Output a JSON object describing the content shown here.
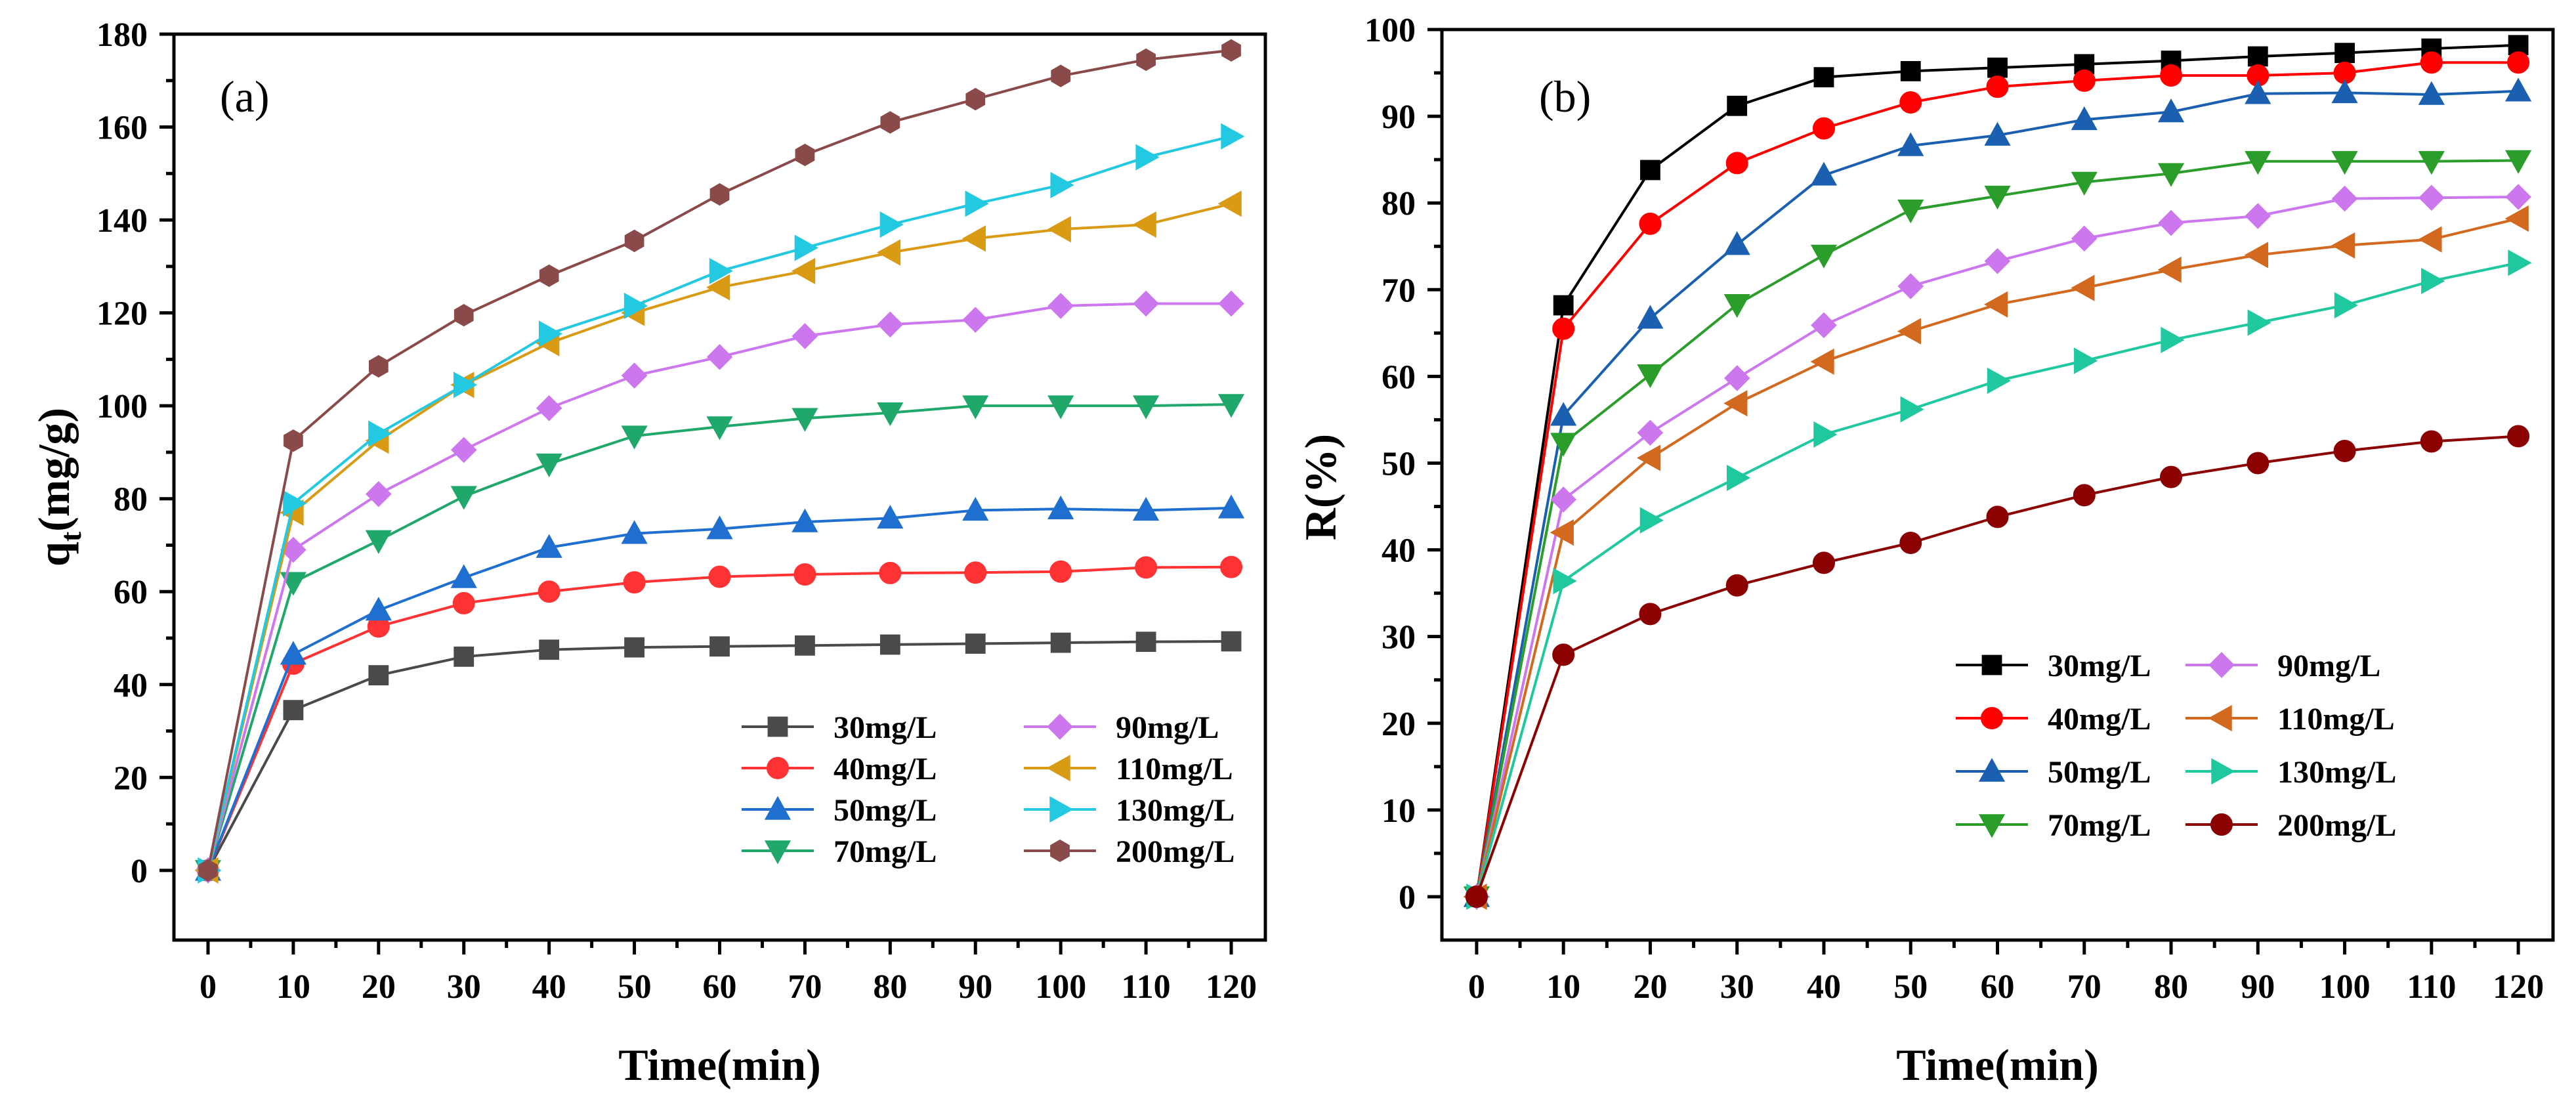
{
  "chart_data": [
    {
      "type": "line",
      "panel_label": "(a)",
      "xlabel": "Time(min)",
      "ylabel_main": "q",
      "ylabel_sub": "t",
      "ylabel_unit": "(mg/g)",
      "xlim": [
        -4,
        124
      ],
      "ylim": [
        -15,
        180
      ],
      "xticks": [
        0,
        10,
        20,
        30,
        40,
        50,
        60,
        70,
        80,
        90,
        100,
        110,
        120
      ],
      "yticks": [
        0,
        20,
        40,
        60,
        80,
        100,
        120,
        140,
        160,
        180
      ],
      "legend_position": "bottom-right",
      "x": [
        0,
        10,
        20,
        30,
        40,
        50,
        60,
        70,
        80,
        90,
        100,
        110,
        120
      ],
      "series": [
        {
          "name": "30mg/L",
          "color": "#4a4a4a",
          "marker": "square",
          "values": [
            0,
            34.5,
            42,
            46,
            47.5,
            48,
            48.2,
            48.4,
            48.6,
            48.8,
            49,
            49.2,
            49.3
          ]
        },
        {
          "name": "40mg/L",
          "color": "#ff3333",
          "marker": "circle",
          "values": [
            0,
            44.5,
            52.5,
            57.5,
            60,
            62,
            63.2,
            63.7,
            64,
            64.1,
            64.3,
            65.2,
            65.3
          ]
        },
        {
          "name": "50mg/L",
          "color": "#1f6fd0",
          "marker": "triangle-up",
          "values": [
            0,
            46.5,
            56,
            63,
            69.5,
            72.5,
            73.5,
            75,
            75.8,
            77.5,
            77.8,
            77.5,
            78
          ]
        },
        {
          "name": "70mg/L",
          "color": "#1fa86a",
          "marker": "triangle-down",
          "values": [
            0,
            62,
            71,
            80.5,
            87.5,
            93.5,
            95.5,
            97.3,
            98.5,
            100,
            100,
            100,
            100.3
          ]
        },
        {
          "name": "90mg/L",
          "color": "#cc77ee",
          "marker": "diamond",
          "values": [
            0,
            69,
            81,
            90.5,
            99.5,
            106.5,
            110.5,
            115,
            117.5,
            118.5,
            121.5,
            122,
            122
          ]
        },
        {
          "name": "110mg/L",
          "color": "#d99a14",
          "marker": "triangle-left",
          "values": [
            0,
            77,
            92.5,
            104.5,
            113.5,
            120,
            125.5,
            129,
            133,
            136,
            138,
            139,
            143.5
          ]
        },
        {
          "name": "130mg/L",
          "color": "#22c9e0",
          "marker": "triangle-right",
          "values": [
            0,
            79,
            94,
            104.5,
            115.5,
            121.5,
            129,
            134,
            139,
            143.5,
            147.5,
            153.5,
            158
          ]
        },
        {
          "name": "200mg/L",
          "color": "#8b4a4a",
          "marker": "hexagon",
          "values": [
            0,
            92.5,
            108.5,
            119.5,
            128,
            135.5,
            145.5,
            154,
            161,
            166,
            171,
            174.5,
            176.5
          ]
        }
      ]
    },
    {
      "type": "line",
      "panel_label": "(b)",
      "xlabel": "Time(min)",
      "ylabel": "R(%)",
      "xlim": [
        -4,
        124
      ],
      "ylim": [
        -5,
        100
      ],
      "xticks": [
        0,
        10,
        20,
        30,
        40,
        50,
        60,
        70,
        80,
        90,
        100,
        110,
        120
      ],
      "yticks": [
        0,
        10,
        20,
        30,
        40,
        50,
        60,
        70,
        80,
        90,
        100
      ],
      "legend_position": "lower-right-center",
      "x": [
        0,
        10,
        20,
        30,
        40,
        50,
        60,
        70,
        80,
        90,
        100,
        110,
        120
      ],
      "series": [
        {
          "name": "30mg/L",
          "color": "#000000",
          "marker": "square",
          "values": [
            0,
            68.2,
            83.8,
            91.2,
            94.5,
            95.2,
            95.6,
            96,
            96.4,
            96.9,
            97.3,
            97.8,
            98.2
          ]
        },
        {
          "name": "40mg/L",
          "color": "#ff0000",
          "marker": "circle",
          "values": [
            0,
            65.5,
            77.6,
            84.6,
            88.6,
            91.6,
            93.4,
            94.1,
            94.7,
            94.7,
            95,
            96.2,
            96.2
          ]
        },
        {
          "name": "50mg/L",
          "color": "#1a5fb0",
          "marker": "triangle-up",
          "values": [
            0,
            55.5,
            66.7,
            75.2,
            83.2,
            86.6,
            87.8,
            89.6,
            90.5,
            92.6,
            92.7,
            92.5,
            92.9
          ]
        },
        {
          "name": "70mg/L",
          "color": "#2a9d2a",
          "marker": "triangle-down",
          "values": [
            0,
            52.3,
            60.2,
            68.3,
            74,
            79.2,
            80.8,
            82.4,
            83.4,
            84.8,
            84.8,
            84.8,
            84.9
          ]
        },
        {
          "name": "90mg/L",
          "color": "#cc77ee",
          "marker": "diamond",
          "values": [
            0,
            45.8,
            53.5,
            59.8,
            65.9,
            70.4,
            73.3,
            75.9,
            77.7,
            78.5,
            80.5,
            80.6,
            80.7
          ]
        },
        {
          "name": "110mg/L",
          "color": "#d2691e",
          "marker": "triangle-left",
          "values": [
            0,
            42,
            50.6,
            56.9,
            61.7,
            65.2,
            68.3,
            70.2,
            72.3,
            74,
            75.1,
            75.8,
            78.2
          ]
        },
        {
          "name": "130mg/L",
          "color": "#20c8a0",
          "marker": "triangle-right",
          "values": [
            0,
            36.4,
            43.4,
            48.3,
            53.3,
            56.2,
            59.5,
            61.8,
            64.2,
            66.2,
            68.2,
            71,
            73.1
          ]
        },
        {
          "name": "200mg/L",
          "color": "#8b0000",
          "marker": "circle",
          "values": [
            0,
            27.9,
            32.6,
            35.9,
            38.5,
            40.8,
            43.8,
            46.3,
            48.4,
            50,
            51.4,
            52.5,
            53.1
          ]
        }
      ]
    }
  ]
}
